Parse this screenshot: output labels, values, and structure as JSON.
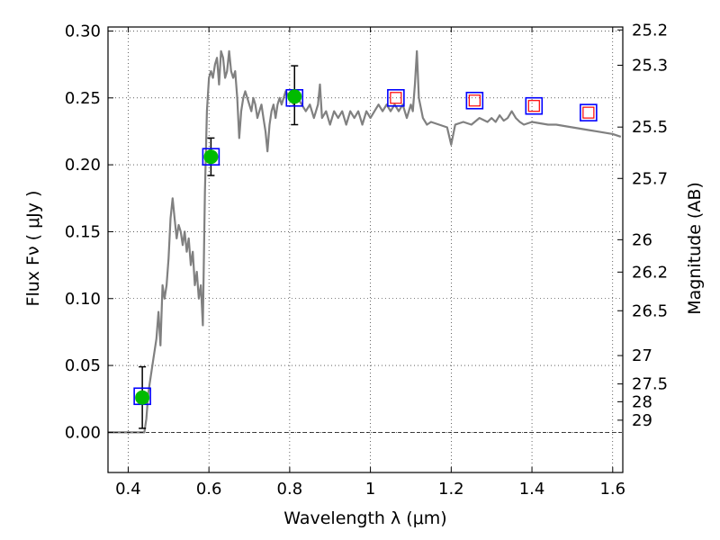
{
  "chart_data": {
    "type": "line",
    "xlabel": "Wavelength  λ (μm)",
    "ylabel": "Flux  Fν  ( μJy )",
    "y2label": "Magnitude (AB)",
    "xlim": [
      0.35,
      1.625
    ],
    "ylim": [
      -0.03,
      0.303
    ],
    "grid": true,
    "x_ticks": [
      0.4,
      0.6,
      0.8,
      1.0,
      1.2,
      1.4,
      1.6
    ],
    "x_tick_labels": [
      "0.4",
      "0.6",
      "0.8",
      "1",
      "1.2",
      "1.4",
      "1.6"
    ],
    "y_ticks": [
      0.0,
      0.05,
      0.1,
      0.15,
      0.2,
      0.25,
      0.3
    ],
    "y_tick_labels": [
      "0.00",
      "0.05",
      "0.10",
      "0.15",
      "0.20",
      "0.25",
      "0.30"
    ],
    "y2_ticks": [
      {
        "label": "25.2",
        "flux": 0.3008
      },
      {
        "label": "25.3",
        "flux": 0.2744
      },
      {
        "label": "25.5",
        "flux": 0.2282
      },
      {
        "label": "25.7",
        "flux": 0.1898
      },
      {
        "label": "26",
        "flux": 0.144
      },
      {
        "label": "26.2",
        "flux": 0.1198
      },
      {
        "label": "26.5",
        "flux": 0.0909
      },
      {
        "label": "27",
        "flux": 0.0574
      },
      {
        "label": "27.5",
        "flux": 0.0362
      },
      {
        "label": "28",
        "flux": 0.0229
      },
      {
        "label": "29",
        "flux": 0.0091
      }
    ],
    "series": [
      {
        "kind": "line",
        "color": "#808080",
        "points": [
          [
            0.35,
            0.0
          ],
          [
            0.44,
            0.0
          ],
          [
            0.445,
            0.01
          ],
          [
            0.45,
            0.03
          ],
          [
            0.46,
            0.05
          ],
          [
            0.47,
            0.07
          ],
          [
            0.475,
            0.09
          ],
          [
            0.48,
            0.065
          ],
          [
            0.485,
            0.11
          ],
          [
            0.49,
            0.1
          ],
          [
            0.495,
            0.11
          ],
          [
            0.5,
            0.13
          ],
          [
            0.505,
            0.16
          ],
          [
            0.51,
            0.175
          ],
          [
            0.515,
            0.16
          ],
          [
            0.52,
            0.145
          ],
          [
            0.525,
            0.155
          ],
          [
            0.53,
            0.15
          ],
          [
            0.535,
            0.14
          ],
          [
            0.54,
            0.15
          ],
          [
            0.545,
            0.135
          ],
          [
            0.55,
            0.145
          ],
          [
            0.555,
            0.125
          ],
          [
            0.56,
            0.135
          ],
          [
            0.565,
            0.11
          ],
          [
            0.57,
            0.12
          ],
          [
            0.575,
            0.1
          ],
          [
            0.58,
            0.11
          ],
          [
            0.585,
            0.08
          ],
          [
            0.59,
            0.18
          ],
          [
            0.595,
            0.24
          ],
          [
            0.6,
            0.265
          ],
          [
            0.605,
            0.27
          ],
          [
            0.61,
            0.265
          ],
          [
            0.615,
            0.275
          ],
          [
            0.62,
            0.28
          ],
          [
            0.625,
            0.26
          ],
          [
            0.63,
            0.285
          ],
          [
            0.635,
            0.28
          ],
          [
            0.64,
            0.265
          ],
          [
            0.645,
            0.27
          ],
          [
            0.65,
            0.285
          ],
          [
            0.655,
            0.27
          ],
          [
            0.66,
            0.265
          ],
          [
            0.665,
            0.27
          ],
          [
            0.67,
            0.25
          ],
          [
            0.675,
            0.22
          ],
          [
            0.68,
            0.24
          ],
          [
            0.685,
            0.25
          ],
          [
            0.69,
            0.255
          ],
          [
            0.695,
            0.25
          ],
          [
            0.7,
            0.245
          ],
          [
            0.705,
            0.24
          ],
          [
            0.71,
            0.25
          ],
          [
            0.715,
            0.245
          ],
          [
            0.72,
            0.235
          ],
          [
            0.725,
            0.24
          ],
          [
            0.73,
            0.245
          ],
          [
            0.735,
            0.235
          ],
          [
            0.74,
            0.225
          ],
          [
            0.745,
            0.21
          ],
          [
            0.75,
            0.23
          ],
          [
            0.755,
            0.24
          ],
          [
            0.76,
            0.245
          ],
          [
            0.765,
            0.235
          ],
          [
            0.77,
            0.245
          ],
          [
            0.775,
            0.25
          ],
          [
            0.78,
            0.245
          ],
          [
            0.79,
            0.255
          ],
          [
            0.8,
            0.25
          ],
          [
            0.81,
            0.245
          ],
          [
            0.82,
            0.25
          ],
          [
            0.83,
            0.245
          ],
          [
            0.84,
            0.24
          ],
          [
            0.85,
            0.245
          ],
          [
            0.86,
            0.235
          ],
          [
            0.87,
            0.245
          ],
          [
            0.875,
            0.26
          ],
          [
            0.88,
            0.235
          ],
          [
            0.89,
            0.24
          ],
          [
            0.9,
            0.23
          ],
          [
            0.91,
            0.24
          ],
          [
            0.92,
            0.235
          ],
          [
            0.93,
            0.24
          ],
          [
            0.94,
            0.23
          ],
          [
            0.95,
            0.24
          ],
          [
            0.96,
            0.235
          ],
          [
            0.97,
            0.24
          ],
          [
            0.98,
            0.23
          ],
          [
            0.99,
            0.24
          ],
          [
            1.0,
            0.235
          ],
          [
            1.01,
            0.24
          ],
          [
            1.02,
            0.245
          ],
          [
            1.03,
            0.24
          ],
          [
            1.04,
            0.245
          ],
          [
            1.05,
            0.24
          ],
          [
            1.06,
            0.245
          ],
          [
            1.07,
            0.24
          ],
          [
            1.08,
            0.245
          ],
          [
            1.09,
            0.235
          ],
          [
            1.1,
            0.245
          ],
          [
            1.105,
            0.24
          ],
          [
            1.11,
            0.26
          ],
          [
            1.115,
            0.285
          ],
          [
            1.12,
            0.25
          ],
          [
            1.13,
            0.235
          ],
          [
            1.14,
            0.23
          ],
          [
            1.15,
            0.232
          ],
          [
            1.17,
            0.23
          ],
          [
            1.19,
            0.228
          ],
          [
            1.2,
            0.215
          ],
          [
            1.21,
            0.23
          ],
          [
            1.23,
            0.232
          ],
          [
            1.25,
            0.23
          ],
          [
            1.27,
            0.235
          ],
          [
            1.29,
            0.232
          ],
          [
            1.3,
            0.235
          ],
          [
            1.31,
            0.232
          ],
          [
            1.32,
            0.237
          ],
          [
            1.33,
            0.233
          ],
          [
            1.34,
            0.235
          ],
          [
            1.35,
            0.24
          ],
          [
            1.36,
            0.235
          ],
          [
            1.37,
            0.232
          ],
          [
            1.38,
            0.23
          ],
          [
            1.4,
            0.232
          ],
          [
            1.42,
            0.231
          ],
          [
            1.44,
            0.23
          ],
          [
            1.46,
            0.23
          ],
          [
            1.48,
            0.229
          ],
          [
            1.5,
            0.228
          ],
          [
            1.52,
            0.227
          ],
          [
            1.54,
            0.226
          ],
          [
            1.56,
            0.225
          ],
          [
            1.58,
            0.224
          ],
          [
            1.6,
            0.223
          ],
          [
            1.62,
            0.221
          ]
        ]
      },
      {
        "kind": "marker",
        "marker": "open-square",
        "color": "#0000ff",
        "points": [
          [
            0.435,
            0.027
          ],
          [
            0.605,
            0.206
          ],
          [
            0.812,
            0.25
          ],
          [
            1.063,
            0.25
          ],
          [
            1.258,
            0.248
          ],
          [
            1.405,
            0.244
          ],
          [
            1.54,
            0.239
          ]
        ]
      },
      {
        "kind": "marker",
        "marker": "small-open-square",
        "color": "#ff0000",
        "points": [
          [
            1.063,
            0.25
          ],
          [
            1.258,
            0.248
          ],
          [
            1.405,
            0.244
          ],
          [
            1.54,
            0.239
          ]
        ]
      },
      {
        "kind": "marker",
        "marker": "filled-circle",
        "color": "#00bb00",
        "points": [
          [
            0.435,
            0.026
          ],
          [
            0.605,
            0.206
          ],
          [
            0.812,
            0.251
          ]
        ]
      }
    ],
    "error_bars": [
      {
        "x": 0.435,
        "y": 0.026,
        "low": 0.003,
        "high": 0.049
      },
      {
        "x": 0.605,
        "y": 0.206,
        "low": 0.192,
        "high": 0.22
      },
      {
        "x": 0.812,
        "y": 0.251,
        "low": 0.23,
        "high": 0.274
      }
    ]
  }
}
